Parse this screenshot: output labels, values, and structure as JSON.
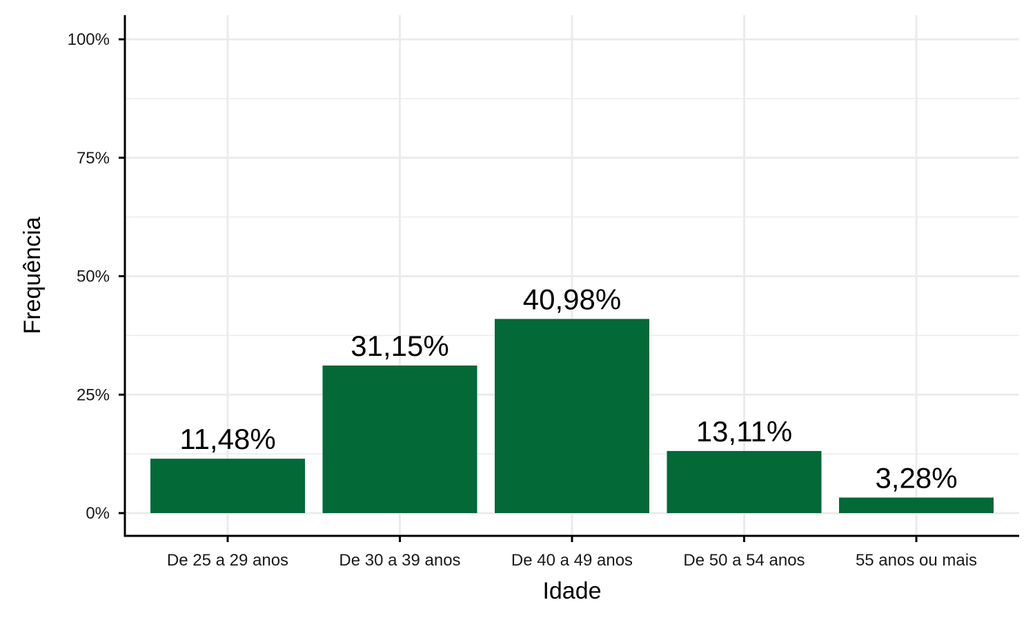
{
  "chart_data": {
    "type": "bar",
    "categories": [
      "De 25 a 29 anos",
      "De 30 a 39 anos",
      "De 40 a 49 anos",
      "De 50 a 54 anos",
      "55 anos ou mais"
    ],
    "values": [
      11.48,
      31.15,
      40.98,
      13.11,
      3.28
    ],
    "data_labels": [
      "11,48%",
      "31,15%",
      "40,98%",
      "13,11%",
      "3,28%"
    ],
    "title": "",
    "xlabel": "Idade",
    "ylabel": "Frequência",
    "ylim": [
      0,
      100
    ],
    "yticks": [
      0,
      25,
      50,
      75,
      100
    ],
    "ytick_labels": [
      "0%",
      "25%",
      "50%",
      "75%",
      "100%"
    ],
    "grid": true,
    "legend": "none",
    "colors": {
      "bar": "#026937",
      "grid": "#ebebeb",
      "axis": "#000000"
    }
  }
}
